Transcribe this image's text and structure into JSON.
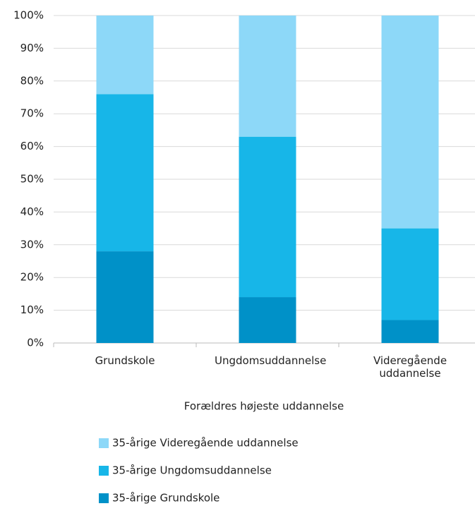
{
  "chart_data": {
    "type": "stacked_bar",
    "x_label": "Forældres højeste uddannelse",
    "categories": [
      "Grundskole",
      "Ungdomsuddannelse",
      "Videregående uddannelse"
    ],
    "series": [
      {
        "name": "35-årige Grundskole",
        "color": "#0091c8",
        "values": [
          28,
          14,
          7
        ]
      },
      {
        "name": "35-årige Ungdomsuddannelse",
        "color": "#17b6e8",
        "values": [
          48,
          49,
          28
        ]
      },
      {
        "name": "35-årige Videregående uddannelse",
        "color": "#8dd8f8",
        "values": [
          24,
          37,
          65
        ]
      }
    ],
    "ylim": [
      0,
      100
    ],
    "yticks": [
      {
        "value": 0,
        "label": "0%"
      },
      {
        "value": 10,
        "label": "10%"
      },
      {
        "value": 20,
        "label": "20%"
      },
      {
        "value": 30,
        "label": "30%"
      },
      {
        "value": 40,
        "label": "40%"
      },
      {
        "value": 50,
        "label": "50%"
      },
      {
        "value": 60,
        "label": "60%"
      },
      {
        "value": 70,
        "label": "70%"
      },
      {
        "value": 80,
        "label": "80%"
      },
      {
        "value": 90,
        "label": "90%"
      },
      {
        "value": 100,
        "label": "100%"
      }
    ],
    "grid": true
  }
}
